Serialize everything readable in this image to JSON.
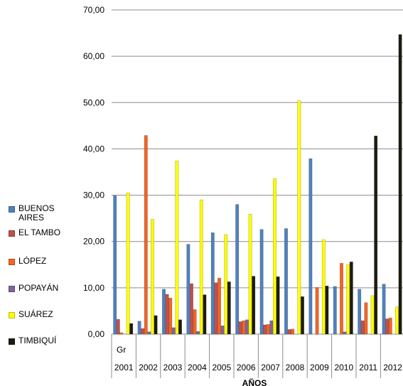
{
  "chart_data": {
    "type": "bar",
    "xlabel": "AÑOS",
    "ylabel": "",
    "ylim": [
      0,
      70
    ],
    "yticks": [
      "0,00",
      "10,00",
      "20,00",
      "30,00",
      "40,00",
      "50,00",
      "60,00",
      "70,00"
    ],
    "grid": true,
    "legend_position": "left",
    "first_cell_text": "Gr",
    "categories": [
      "2001",
      "2002",
      "2003",
      "2004",
      "2005",
      "2006",
      "2007",
      "2008",
      "2009",
      "2010",
      "2011",
      "2012"
    ],
    "series": [
      {
        "name": "BUENOS AIRES",
        "color": "#4f81bd",
        "values": [
          29.9,
          2.8,
          9.7,
          19.4,
          21.9,
          28.0,
          22.6,
          22.8,
          37.9,
          10.3,
          9.7,
          10.8
        ]
      },
      {
        "name": "EL TAMBO",
        "color": "#c0504d",
        "values": [
          3.2,
          1.2,
          8.6,
          10.9,
          11.1,
          2.7,
          2.0,
          1.0,
          0.0,
          0.0,
          2.9,
          3.3
        ]
      },
      {
        "name": "LÓPEZ",
        "color": "#f26522",
        "values": [
          0.3,
          42.9,
          7.8,
          5.3,
          12.1,
          2.9,
          2.1,
          1.1,
          10.1,
          15.3,
          6.8,
          3.5
        ]
      },
      {
        "name": "POPAYÁN",
        "color": "#8064a2",
        "values": [
          0.0,
          0.5,
          1.4,
          0.6,
          1.8,
          3.1,
          2.9,
          0.0,
          0.0,
          0.5,
          0.0,
          0.0
        ]
      },
      {
        "name": "SUÁREZ",
        "color": "#ffff00",
        "values": [
          30.5,
          24.8,
          37.4,
          29.0,
          21.5,
          25.9,
          33.6,
          50.4,
          20.4,
          15.0,
          8.3,
          5.9
        ]
      },
      {
        "name": "TIMBIQUÍ",
        "color": "#1e1c11",
        "values": [
          2.3,
          4.0,
          3.1,
          8.5,
          11.3,
          12.5,
          12.4,
          8.1,
          10.4,
          15.6,
          42.8,
          64.7
        ]
      }
    ]
  }
}
